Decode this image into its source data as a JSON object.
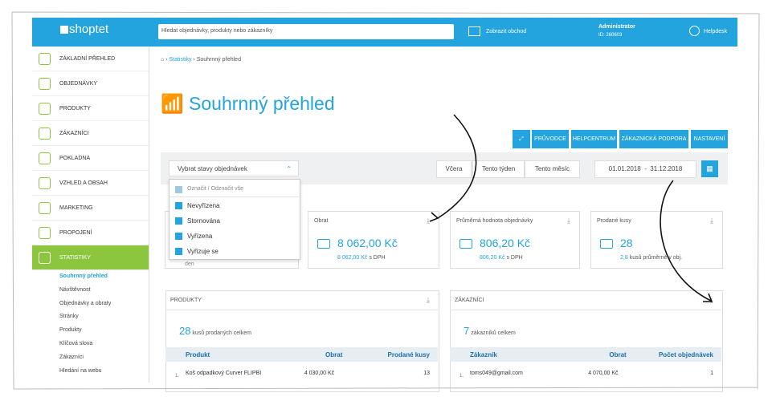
{
  "topbar": {
    "logo": "shoptet",
    "search_placeholder": "Hledat objednávky, produkty nebo zákazníky",
    "show_shop": "Zobrazit obchod",
    "user": "Administrator",
    "user_id": "ID: 260603",
    "helpdesk": "Helpdesk"
  },
  "sidebar": {
    "items": [
      "ZÁKLADNÍ PŘEHLED",
      "OBJEDNÁVKY",
      "PRODUKTY",
      "ZÁKAZNÍCI",
      "POKLADNA",
      "VZHLED A OBSAH",
      "MARKETING",
      "PROPOJENÍ",
      "STATISTIKY"
    ],
    "submenu": [
      "Souhrnný přehled",
      "Návštěvnost",
      "Objednávky a obraty",
      "Stránky",
      "Produkty",
      "Klíčová slova",
      "Zákazníci",
      "Hledání na webu"
    ]
  },
  "breadcrumb": [
    "Statistiky",
    "Souhrnný přehled"
  ],
  "title": "Souhrnný přehled",
  "buttons": [
    "PRŮVODCE",
    "HELPCENTRUM",
    "ZÁKAZNICKÁ PODPORA",
    "NASTAVENÍ"
  ],
  "filter": {
    "select": "Vybrat stavy objednávek",
    "ranges": [
      "Včera",
      "Tento týden",
      "Tento měsíc"
    ],
    "date_from": "01.01.2018",
    "date_sep": "-",
    "date_to": "31.12.2018"
  },
  "dropdown": {
    "toggle_all": "Označit / Odznačit vše",
    "options": [
      "Nevyřízena",
      "Stornována",
      "Vyřízena",
      "Vyřizuje se"
    ]
  },
  "cards": [
    {
      "label": "Obrat",
      "value": "8 062,00 Kč",
      "sub_value": "8 062,00 Kč",
      "sub_text": "s DPH"
    },
    {
      "label": "Průměrná hodnota objednávky",
      "value": "806,20 Kč",
      "sub_value": "806,20 Kč",
      "sub_text": "s DPH"
    },
    {
      "label": "Prodané kusy",
      "value": "28",
      "sub_value": "2,8",
      "sub_text": "kusů průměrně v obj."
    }
  ],
  "products": {
    "title": "PRODUKTY",
    "count": "28",
    "count_text": "kusů prodaných celkem",
    "headers": [
      "Produkt",
      "Obrat",
      "Prodané kusy"
    ],
    "rows": [
      [
        "1.",
        "Koš odpadkový Curver FLIPBI",
        "4 030,00 Kč",
        "13"
      ]
    ]
  },
  "customers": {
    "title": "ZÁKAZNÍCI",
    "count": "7",
    "count_text": "zákazníků celkem",
    "headers": [
      "Zákazník",
      "Obrat",
      "Počet objednávek"
    ],
    "rows": [
      [
        "1.",
        "toms049@gmail.com",
        "4 070,00 Kč",
        "1"
      ]
    ]
  }
}
